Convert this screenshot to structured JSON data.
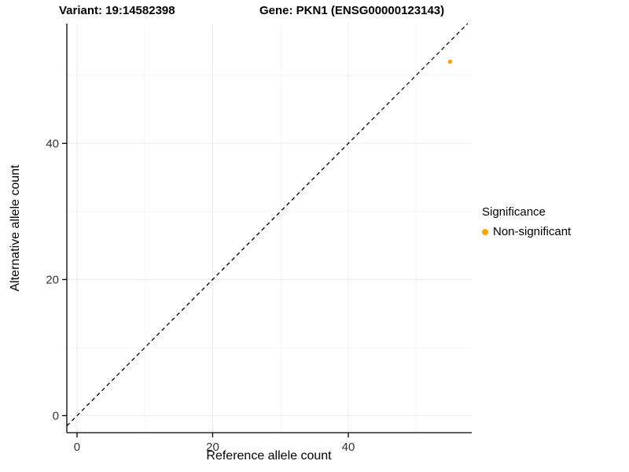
{
  "chart_data": {
    "type": "scatter",
    "title_variant": "Variant: 19:14582398",
    "title_gene": "Gene: PKN1 (ENSG00000123143)",
    "xlabel": "Reference allele count",
    "ylabel": "Alternative allele count",
    "xlim": [
      -1.5,
      58.2
    ],
    "ylim": [
      -2.5,
      57.6
    ],
    "x_ticks": [
      0,
      20,
      40
    ],
    "y_ticks": [
      0,
      20,
      40
    ],
    "x_minor_ticks": [
      10,
      30,
      50
    ],
    "y_minor_ticks": [
      10,
      30,
      50
    ],
    "grid": true,
    "identity_line": {
      "style": "dashed",
      "color": "#000000"
    },
    "series": [
      {
        "name": "Non-significant",
        "color": "#FFA500",
        "points": [
          {
            "x": 55,
            "y": 52
          }
        ]
      }
    ],
    "legend": {
      "title": "Significance",
      "position": "right",
      "entries": [
        {
          "label": "Non-significant",
          "color": "#FFA500"
        }
      ]
    },
    "colors": {
      "major_grid": "#ECECEC",
      "minor_grid": "#F5F5F5",
      "axis": "#000000",
      "tick_text": "#333333"
    }
  }
}
